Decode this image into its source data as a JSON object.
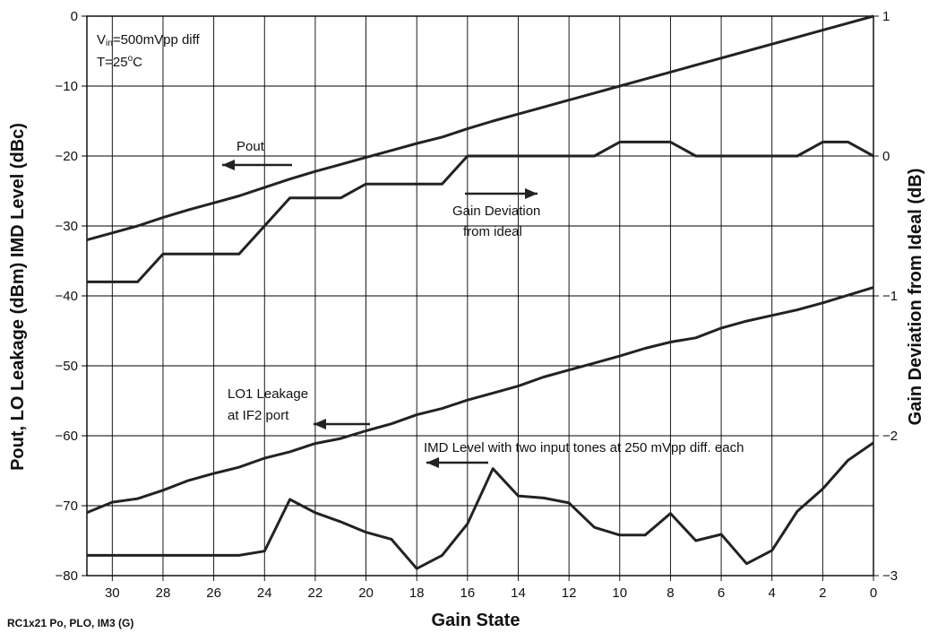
{
  "chart_data": {
    "type": "line",
    "xlabel": "Gain State",
    "ylabel_left": "Pout, LO Leakage (dBm) IMD Level (dBc)",
    "ylabel_right": "Gain Deviation from Ideal (dB)",
    "caption": "RC1x21 Po, PLO, IM3 (G)",
    "x_axis": {
      "min": 0,
      "max": 31,
      "reversed": true,
      "ticks": [
        30,
        28,
        26,
        24,
        22,
        20,
        18,
        16,
        14,
        12,
        10,
        8,
        6,
        4,
        2,
        0
      ],
      "tick_labels": [
        "30",
        "28",
        "26",
        "24",
        "22",
        "20",
        "18",
        "16",
        "14",
        "12",
        "10",
        "8",
        "6",
        "4",
        "2",
        "0"
      ]
    },
    "y_left": {
      "min": -80,
      "max": 0,
      "ticks": [
        0,
        -10,
        -20,
        -30,
        -40,
        -50,
        -60,
        -70,
        -80
      ],
      "tick_labels": [
        "0",
        "−10",
        "−20",
        "−30",
        "−40",
        "−50",
        "−60",
        "−70",
        "−80"
      ]
    },
    "y_right": {
      "min": -3,
      "max": 1,
      "ticks": [
        1,
        0,
        -1,
        -2,
        -3
      ],
      "tick_labels": [
        "1",
        "0",
        "−1",
        "−2",
        "−3"
      ]
    },
    "grid": true,
    "conditions": {
      "vin_sub": "in",
      "vin_rest": "=500mVpp diff",
      "temp_pre": "T=25",
      "temp_sup": "o",
      "temp_post": "C"
    },
    "annotations": {
      "pout": "Pout",
      "gain_dev_1": "Gain Deviation",
      "gain_dev_2": "from ideal",
      "lo1_1": "LO1 Leakage",
      "lo1_2": "at IF2 port",
      "imd": "IMD Level with two input tones at 250 mVpp diff. each"
    },
    "series": [
      {
        "axis": "left",
        "x": [
          31,
          30,
          29,
          28,
          27,
          26,
          25,
          24,
          23,
          22,
          21,
          20,
          19,
          18,
          17,
          16,
          15,
          14,
          13,
          12,
          11,
          10,
          9,
          8,
          7,
          6,
          5,
          4,
          3,
          2,
          1,
          0
        ],
        "values": [
          -32,
          -31,
          -30,
          -28.8,
          -27.7,
          -26.7,
          -25.7,
          -24.5,
          -23.3,
          -22.2,
          -21.2,
          -20.2,
          -19.2,
          -18.2,
          -17.3,
          -16.1,
          -15.0,
          -14.0,
          -13.0,
          -12.0,
          -11.0,
          -10.0,
          -9.0,
          -8.0,
          -7.0,
          -6.0,
          -5.0,
          -4.0,
          -3.0,
          -2.0,
          -1.0,
          0.0
        ]
      },
      {
        "axis": "right",
        "x": [
          31,
          30,
          29,
          28,
          27,
          26,
          25,
          24,
          23,
          22,
          21,
          20,
          19,
          18,
          17,
          16,
          15,
          14,
          13,
          12,
          11,
          10,
          9,
          8,
          7,
          6,
          5,
          4,
          3,
          2,
          1,
          0
        ],
        "values": [
          -0.9,
          -0.9,
          -0.9,
          -0.7,
          -0.7,
          -0.7,
          -0.7,
          -0.5,
          -0.3,
          -0.3,
          -0.3,
          -0.2,
          -0.2,
          -0.2,
          -0.2,
          0.0,
          0.0,
          0.0,
          0.0,
          0.0,
          0.0,
          0.1,
          0.1,
          0.1,
          0.0,
          0.0,
          0.0,
          0.0,
          0.0,
          0.1,
          0.1,
          0.0
        ]
      },
      {
        "axis": "left",
        "x": [
          31,
          30,
          29,
          28,
          27,
          26,
          25,
          24,
          23,
          22,
          21,
          20,
          19,
          18,
          17,
          16,
          15,
          14,
          13,
          12,
          11,
          10,
          9,
          8,
          7,
          6,
          5,
          4,
          3,
          2,
          1,
          0
        ],
        "values": [
          -71,
          -69.5,
          -69,
          -67.8,
          -66.4,
          -65.4,
          -64.5,
          -63.2,
          -62.3,
          -61.1,
          -60.4,
          -59.3,
          -58.3,
          -57.0,
          -56.1,
          -54.9,
          -53.9,
          -52.9,
          -51.6,
          -50.6,
          -49.6,
          -48.6,
          -47.5,
          -46.6,
          -46.0,
          -44.6,
          -43.6,
          -42.8,
          -42.0,
          -41.0,
          -39.9,
          -38.8
        ]
      },
      {
        "axis": "left",
        "x": [
          31,
          30,
          29,
          28,
          27,
          26,
          25,
          24,
          23,
          22,
          21,
          20,
          19,
          18,
          17,
          16,
          15,
          14,
          13,
          12,
          11,
          10,
          9,
          8,
          7,
          6,
          5,
          4,
          3,
          2,
          1,
          0
        ],
        "values": [
          -77.1,
          -77.1,
          -77.1,
          -77.1,
          -77.1,
          -77.1,
          -77.1,
          -76.5,
          -69.1,
          -71.0,
          -72.3,
          -73.8,
          -74.8,
          -79.0,
          -77.1,
          -72.6,
          -64.7,
          -68.6,
          -68.9,
          -69.6,
          -73.1,
          -74.2,
          -74.2,
          -71.1,
          -75.0,
          -74.1,
          -78.3,
          -76.4,
          -70.8,
          -67.6,
          -63.5,
          -61.0
        ]
      }
    ]
  }
}
